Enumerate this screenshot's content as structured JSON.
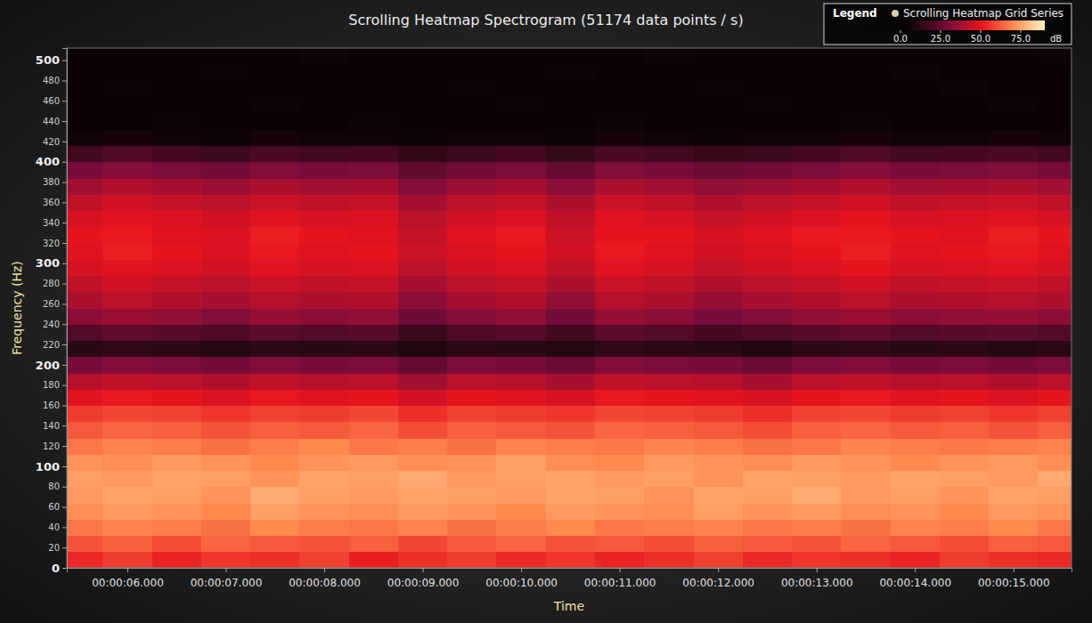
{
  "chart_data": {
    "type": "heatmap",
    "title": "Scrolling Heatmap Spectrogram (51174 data points / s)",
    "x_label": "Time",
    "y_label": "Frequency (Hz)",
    "xlim": [
      5.385,
      15.59
    ],
    "ylim": [
      0,
      512
    ],
    "xticks": [
      {
        "value": 6,
        "label": "00:00:06.000"
      },
      {
        "value": 7,
        "label": "00:00:07.000"
      },
      {
        "value": 8,
        "label": "00:00:08.000"
      },
      {
        "value": 9,
        "label": "00:00:09.000"
      },
      {
        "value": 10,
        "label": "00:00:10.000"
      },
      {
        "value": 11,
        "label": "00:00:11.000"
      },
      {
        "value": 12,
        "label": "00:00:12.000"
      },
      {
        "value": 13,
        "label": "00:00:13.000"
      },
      {
        "value": 14,
        "label": "00:00:14.000"
      },
      {
        "value": 15,
        "label": "00:00:15.000"
      }
    ],
    "yticks": [
      0,
      20,
      40,
      60,
      80,
      100,
      120,
      140,
      160,
      180,
      200,
      220,
      240,
      260,
      280,
      300,
      320,
      340,
      360,
      380,
      400,
      420,
      440,
      460,
      480,
      500
    ],
    "grid": false,
    "legend": "top-right",
    "legend_title": "Legend",
    "x": [
      5.5,
      6,
      6.5,
      7,
      7.5,
      8,
      8.5,
      9,
      9.5,
      10,
      10.5,
      11,
      11.5,
      12,
      12.5,
      13,
      13.5,
      14,
      14.5,
      15,
      15.5
    ],
    "y": [
      8,
      24,
      40,
      56,
      72,
      88,
      104,
      120,
      136,
      152,
      168,
      184,
      200,
      216,
      232,
      248,
      264,
      280,
      296,
      312,
      328,
      344,
      360,
      376,
      392,
      408,
      424,
      440,
      456,
      472,
      488,
      504
    ],
    "colorbar": {
      "range": [
        0,
        90
      ],
      "ticks": [
        {
          "value": 0,
          "label": "0.0"
        },
        {
          "value": 25,
          "label": "25.0"
        },
        {
          "value": 50,
          "label": "50.0"
        },
        {
          "value": 75,
          "label": "75.0"
        }
      ],
      "label": "dB"
    },
    "series": [
      {
        "name": "Scrolling Heatmap Grid Series",
        "values": [
          [
            54,
            57,
            53,
            56,
            55,
            58,
            52,
            55,
            57,
            54,
            56,
            53,
            55,
            58,
            54,
            56,
            55,
            53,
            57,
            55,
            54
          ],
          [
            61,
            63,
            60,
            64,
            62,
            61,
            63,
            59,
            62,
            64,
            61,
            62,
            60,
            63,
            62,
            61,
            64,
            62,
            60,
            63,
            62
          ],
          [
            67,
            69,
            68,
            66,
            70,
            68,
            67,
            69,
            66,
            68,
            70,
            67,
            68,
            69,
            67,
            68,
            66,
            69,
            68,
            70,
            67
          ],
          [
            71,
            73,
            72,
            70,
            74,
            72,
            71,
            73,
            72,
            70,
            73,
            72,
            71,
            74,
            72,
            73,
            71,
            72,
            70,
            73,
            72
          ],
          [
            73,
            75,
            74,
            72,
            76,
            74,
            73,
            75,
            74,
            73,
            75,
            74,
            72,
            75,
            74,
            76,
            73,
            74,
            72,
            75,
            74
          ],
          [
            74,
            73,
            75,
            74,
            72,
            75,
            74,
            76,
            73,
            74,
            75,
            73,
            74,
            72,
            75,
            74,
            73,
            75,
            74,
            73,
            76
          ],
          [
            72,
            71,
            73,
            72,
            70,
            72,
            73,
            71,
            72,
            74,
            71,
            70,
            73,
            72,
            71,
            73,
            72,
            70,
            72,
            73,
            71
          ],
          [
            67,
            69,
            68,
            66,
            68,
            70,
            67,
            68,
            66,
            69,
            68,
            67,
            69,
            68,
            66,
            67,
            69,
            68,
            67,
            68,
            69
          ],
          [
            62,
            64,
            63,
            61,
            63,
            62,
            64,
            60,
            63,
            62,
            61,
            64,
            63,
            62,
            60,
            63,
            64,
            62,
            63,
            61,
            63
          ],
          [
            57,
            59,
            58,
            56,
            58,
            57,
            59,
            55,
            58,
            57,
            56,
            59,
            58,
            57,
            55,
            58,
            59,
            57,
            58,
            56,
            58
          ],
          [
            49,
            51,
            50,
            48,
            51,
            49,
            50,
            46,
            50,
            49,
            47,
            51,
            50,
            49,
            47,
            50,
            51,
            49,
            50,
            48,
            50
          ],
          [
            41,
            43,
            42,
            40,
            43,
            41,
            42,
            37,
            42,
            41,
            38,
            43,
            42,
            41,
            38,
            42,
            43,
            41,
            42,
            40,
            42
          ],
          [
            29,
            31,
            30,
            28,
            31,
            29,
            30,
            25,
            30,
            29,
            26,
            31,
            30,
            29,
            26,
            30,
            31,
            29,
            30,
            28,
            30
          ],
          [
            11,
            13,
            12,
            10,
            12,
            11,
            12,
            9,
            12,
            11,
            10,
            13,
            12,
            11,
            9,
            12,
            13,
            11,
            12,
            10,
            12
          ],
          [
            21,
            24,
            22,
            20,
            23,
            21,
            22,
            16,
            20,
            22,
            17,
            23,
            21,
            18,
            20,
            22,
            24,
            21,
            22,
            23,
            21
          ],
          [
            33,
            36,
            34,
            31,
            35,
            33,
            34,
            27,
            32,
            34,
            28,
            35,
            33,
            29,
            31,
            34,
            36,
            33,
            34,
            35,
            33
          ],
          [
            39,
            42,
            40,
            38,
            41,
            39,
            40,
            33,
            38,
            40,
            34,
            41,
            39,
            35,
            38,
            40,
            42,
            39,
            40,
            41,
            39
          ],
          [
            43,
            46,
            44,
            42,
            45,
            43,
            44,
            38,
            42,
            44,
            39,
            45,
            43,
            40,
            42,
            44,
            46,
            43,
            44,
            45,
            43
          ],
          [
            47,
            49,
            48,
            46,
            49,
            47,
            48,
            42,
            46,
            48,
            43,
            49,
            47,
            44,
            46,
            48,
            50,
            47,
            48,
            49,
            47
          ],
          [
            49,
            52,
            50,
            48,
            51,
            49,
            50,
            45,
            48,
            50,
            46,
            51,
            49,
            46,
            48,
            50,
            52,
            49,
            50,
            51,
            49
          ],
          [
            50,
            51,
            49,
            48,
            52,
            50,
            49,
            44,
            49,
            51,
            45,
            50,
            50,
            47,
            49,
            51,
            51,
            50,
            49,
            52,
            50
          ],
          [
            47,
            49,
            48,
            46,
            49,
            47,
            48,
            42,
            46,
            48,
            43,
            49,
            47,
            44,
            46,
            48,
            50,
            47,
            48,
            49,
            47
          ],
          [
            43,
            46,
            44,
            42,
            45,
            43,
            44,
            38,
            42,
            44,
            39,
            45,
            43,
            40,
            42,
            44,
            46,
            43,
            44,
            45,
            43
          ],
          [
            37,
            40,
            38,
            36,
            39,
            37,
            38,
            32,
            36,
            38,
            33,
            39,
            37,
            34,
            36,
            38,
            40,
            37,
            38,
            39,
            37
          ],
          [
            29,
            32,
            30,
            28,
            31,
            29,
            30,
            24,
            28,
            30,
            25,
            31,
            29,
            26,
            28,
            30,
            32,
            29,
            30,
            31,
            29
          ],
          [
            17,
            20,
            18,
            16,
            19,
            17,
            18,
            13,
            16,
            18,
            14,
            19,
            17,
            15,
            16,
            18,
            20,
            17,
            18,
            19,
            17
          ],
          [
            5,
            6,
            5,
            4,
            6,
            5,
            5,
            4,
            5,
            5,
            4,
            6,
            5,
            4,
            5,
            5,
            6,
            5,
            5,
            6,
            5
          ],
          [
            3,
            3,
            4,
            3,
            3,
            3,
            4,
            3,
            3,
            3,
            3,
            4,
            3,
            3,
            3,
            3,
            4,
            3,
            3,
            3,
            3
          ],
          [
            3,
            3,
            3,
            3,
            4,
            3,
            3,
            3,
            3,
            4,
            3,
            3,
            3,
            3,
            4,
            3,
            3,
            3,
            3,
            4,
            3
          ],
          [
            3,
            4,
            3,
            3,
            3,
            3,
            3,
            3,
            4,
            3,
            3,
            3,
            3,
            4,
            3,
            3,
            3,
            3,
            4,
            3,
            3
          ],
          [
            3,
            3,
            3,
            4,
            3,
            3,
            3,
            3,
            3,
            3,
            4,
            3,
            3,
            3,
            3,
            3,
            3,
            4,
            3,
            3,
            3
          ],
          [
            3,
            3,
            3,
            3,
            3,
            4,
            3,
            3,
            3,
            3,
            3,
            3,
            4,
            3,
            3,
            3,
            3,
            3,
            3,
            3,
            4
          ]
        ]
      }
    ]
  }
}
